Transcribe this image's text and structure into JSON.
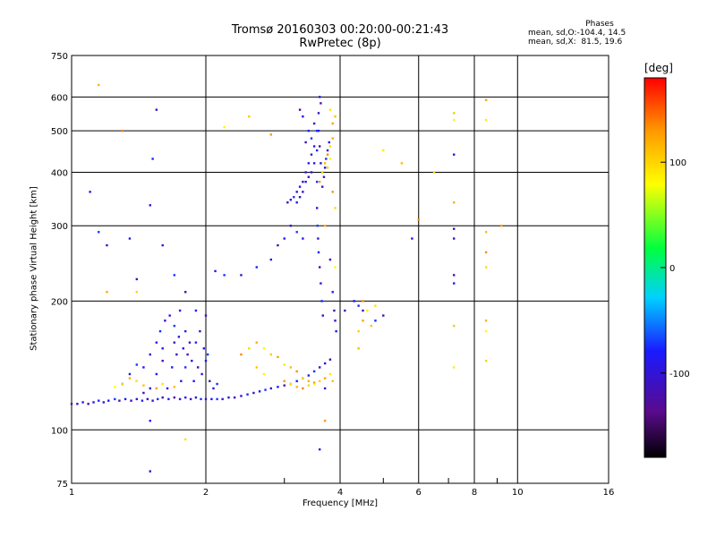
{
  "header": {
    "title_line1": "Tromsø 20160303 00:20:00-00:21:43",
    "title_line2": "RwPretec (8p)"
  },
  "phases": {
    "title": "Phases",
    "line1": "mean, sd,O:-104.4, 14.5",
    "line2": "mean, sd,X:  81.5, 19.6"
  },
  "colorbar": {
    "label": "[deg]",
    "ticks": [
      {
        "value": 100,
        "label": "100"
      },
      {
        "value": 0,
        "label": "0"
      },
      {
        "value": -100,
        "label": "-100"
      }
    ]
  },
  "chart_data": {
    "type": "scatter",
    "title": "Tromsø 20160303 00:20:00-00:21:43",
    "subtitle": "RwPretec (8p)",
    "xlabel": "Frequency [MHz]",
    "ylabel": "Stationary phase Virtual Height [km]",
    "xscale": "log",
    "yscale": "log",
    "xlim": [
      1,
      16
    ],
    "ylim": [
      75,
      750
    ],
    "xticks": [
      1,
      2,
      4,
      6,
      8,
      10,
      16
    ],
    "yticks": [
      75,
      100,
      200,
      300,
      400,
      500,
      600,
      750
    ],
    "grid": true,
    "colorbar": {
      "label": "[deg]",
      "range": [
        -180,
        180
      ],
      "colormap": "rainbow"
    },
    "series": [
      {
        "name": "O-mode",
        "color_range": [
          -130,
          -90
        ],
        "points": [
          [
            1.0,
            115
          ],
          [
            1.03,
            115
          ],
          [
            1.06,
            116
          ],
          [
            1.09,
            115
          ],
          [
            1.12,
            116
          ],
          [
            1.15,
            117
          ],
          [
            1.18,
            116
          ],
          [
            1.21,
            117
          ],
          [
            1.25,
            118
          ],
          [
            1.28,
            117
          ],
          [
            1.32,
            118
          ],
          [
            1.36,
            117
          ],
          [
            1.4,
            118
          ],
          [
            1.44,
            117
          ],
          [
            1.48,
            118
          ],
          [
            1.52,
            117
          ],
          [
            1.56,
            118
          ],
          [
            1.6,
            119
          ],
          [
            1.65,
            118
          ],
          [
            1.7,
            119
          ],
          [
            1.75,
            118
          ],
          [
            1.8,
            119
          ],
          [
            1.85,
            118
          ],
          [
            1.9,
            119
          ],
          [
            1.95,
            118
          ],
          [
            2.0,
            118
          ],
          [
            2.06,
            118
          ],
          [
            2.12,
            118
          ],
          [
            2.18,
            118
          ],
          [
            2.25,
            119
          ],
          [
            2.32,
            119
          ],
          [
            2.4,
            120
          ],
          [
            2.48,
            121
          ],
          [
            2.56,
            122
          ],
          [
            2.64,
            123
          ],
          [
            2.72,
            124
          ],
          [
            2.8,
            125
          ],
          [
            2.9,
            126
          ],
          [
            3.0,
            127
          ],
          [
            3.1,
            128
          ],
          [
            3.2,
            130
          ],
          [
            3.3,
            132
          ],
          [
            3.4,
            134
          ],
          [
            3.5,
            137
          ],
          [
            3.6,
            140
          ],
          [
            3.7,
            143
          ],
          [
            3.8,
            146
          ],
          [
            1.4,
            130
          ],
          [
            1.45,
            140
          ],
          [
            1.5,
            150
          ],
          [
            1.55,
            160
          ],
          [
            1.58,
            170
          ],
          [
            1.62,
            180
          ],
          [
            1.66,
            185
          ],
          [
            1.7,
            175
          ],
          [
            1.74,
            165
          ],
          [
            1.78,
            155
          ],
          [
            1.82,
            150
          ],
          [
            1.86,
            145
          ],
          [
            1.9,
            160
          ],
          [
            1.94,
            170
          ],
          [
            1.98,
            155
          ],
          [
            2.02,
            150
          ],
          [
            1.5,
            125
          ],
          [
            1.55,
            135
          ],
          [
            1.6,
            145
          ],
          [
            1.64,
            125
          ],
          [
            1.68,
            140
          ],
          [
            1.72,
            150
          ],
          [
            1.76,
            130
          ],
          [
            1.8,
            140
          ],
          [
            1.84,
            160
          ],
          [
            1.88,
            130
          ],
          [
            1.92,
            140
          ],
          [
            1.96,
            135
          ],
          [
            2.0,
            145
          ],
          [
            2.04,
            130
          ],
          [
            2.08,
            125
          ],
          [
            2.12,
            128
          ],
          [
            1.3,
            128
          ],
          [
            1.35,
            135
          ],
          [
            1.4,
            142
          ],
          [
            1.45,
            122
          ],
          [
            1.6,
            155
          ],
          [
            1.7,
            160
          ],
          [
            1.75,
            190
          ],
          [
            1.8,
            170
          ],
          [
            3.05,
            340
          ],
          [
            3.1,
            345
          ],
          [
            3.15,
            350
          ],
          [
            3.2,
            360
          ],
          [
            3.25,
            370
          ],
          [
            3.3,
            380
          ],
          [
            3.35,
            400
          ],
          [
            3.4,
            420
          ],
          [
            3.45,
            440
          ],
          [
            3.5,
            460
          ],
          [
            3.55,
            500
          ],
          [
            3.58,
            550
          ],
          [
            3.6,
            600
          ],
          [
            3.62,
            580
          ],
          [
            3.3,
            360
          ],
          [
            3.35,
            380
          ],
          [
            3.4,
            390
          ],
          [
            3.5,
            420
          ],
          [
            3.55,
            450
          ],
          [
            3.25,
            350
          ],
          [
            3.2,
            340
          ],
          [
            3.45,
            480
          ],
          [
            3.5,
            520
          ],
          [
            3.58,
            500
          ],
          [
            3.6,
            460
          ],
          [
            3.62,
            420
          ],
          [
            3.65,
            400
          ],
          [
            3.68,
            390
          ],
          [
            3.7,
            410
          ],
          [
            3.72,
            430
          ],
          [
            3.75,
            450
          ],
          [
            3.78,
            470
          ],
          [
            3.25,
            560
          ],
          [
            3.3,
            540
          ],
          [
            3.4,
            500
          ],
          [
            3.35,
            470
          ],
          [
            3.45,
            400
          ],
          [
            3.55,
            380
          ],
          [
            3.65,
            370
          ],
          [
            3.55,
            330
          ],
          [
            3.56,
            300
          ],
          [
            3.57,
            280
          ],
          [
            3.58,
            260
          ],
          [
            3.6,
            240
          ],
          [
            3.62,
            220
          ],
          [
            3.64,
            200
          ],
          [
            3.66,
            185
          ],
          [
            3.3,
            280
          ],
          [
            3.2,
            290
          ],
          [
            3.1,
            300
          ],
          [
            3.0,
            280
          ],
          [
            2.9,
            270
          ],
          [
            2.8,
            250
          ],
          [
            2.6,
            240
          ],
          [
            2.4,
            230
          ],
          [
            2.1,
            235
          ],
          [
            2.2,
            230
          ],
          [
            3.8,
            250
          ],
          [
            3.85,
            210
          ],
          [
            3.88,
            190
          ],
          [
            3.9,
            180
          ],
          [
            3.92,
            170
          ],
          [
            4.1,
            190
          ],
          [
            4.3,
            200
          ],
          [
            4.4,
            195
          ],
          [
            4.5,
            190
          ],
          [
            1.1,
            360
          ],
          [
            1.15,
            290
          ],
          [
            1.2,
            270
          ],
          [
            1.35,
            280
          ],
          [
            1.4,
            225
          ],
          [
            1.5,
            335
          ],
          [
            1.52,
            430
          ],
          [
            1.55,
            560
          ],
          [
            1.6,
            270
          ],
          [
            1.7,
            230
          ],
          [
            1.8,
            210
          ],
          [
            1.9,
            190
          ],
          [
            2.0,
            185
          ],
          [
            3.7,
            125
          ],
          [
            3.6,
            90
          ],
          [
            1.5,
            80
          ],
          [
            1.5,
            105
          ],
          [
            4.8,
            180
          ],
          [
            5.0,
            185
          ],
          [
            5.8,
            280
          ],
          [
            7.2,
            295
          ],
          [
            7.2,
            280
          ],
          [
            7.2,
            220
          ],
          [
            7.2,
            230
          ],
          [
            7.2,
            440
          ]
        ]
      },
      {
        "name": "X-mode",
        "color_range": [
          60,
          130
        ],
        "points": [
          [
            1.25,
            126
          ],
          [
            1.3,
            128
          ],
          [
            1.35,
            132
          ],
          [
            1.4,
            130
          ],
          [
            1.45,
            127
          ],
          [
            1.55,
            125
          ],
          [
            1.6,
            128
          ],
          [
            1.7,
            126
          ],
          [
            2.4,
            150
          ],
          [
            2.5,
            155
          ],
          [
            2.6,
            160
          ],
          [
            2.7,
            155
          ],
          [
            2.8,
            150
          ],
          [
            2.9,
            148
          ],
          [
            3.0,
            142
          ],
          [
            3.1,
            140
          ],
          [
            3.2,
            137
          ],
          [
            3.3,
            132
          ],
          [
            3.4,
            130
          ],
          [
            3.5,
            128
          ],
          [
            3.6,
            130
          ],
          [
            3.7,
            132
          ],
          [
            3.8,
            135
          ],
          [
            3.85,
            130
          ],
          [
            3.0,
            130
          ],
          [
            3.1,
            128
          ],
          [
            3.2,
            126
          ],
          [
            3.3,
            125
          ],
          [
            3.4,
            127
          ],
          [
            3.5,
            129
          ],
          [
            2.7,
            135
          ],
          [
            2.6,
            140
          ],
          [
            3.6,
            380
          ],
          [
            3.65,
            400
          ],
          [
            3.7,
            420
          ],
          [
            3.75,
            440
          ],
          [
            3.8,
            460
          ],
          [
            3.85,
            480
          ],
          [
            3.8,
            430
          ],
          [
            3.75,
            410
          ],
          [
            3.85,
            520
          ],
          [
            3.8,
            560
          ],
          [
            3.9,
            540
          ],
          [
            3.85,
            360
          ],
          [
            3.9,
            330
          ],
          [
            3.7,
            300
          ],
          [
            3.9,
            240
          ],
          [
            4.4,
            170
          ],
          [
            4.5,
            180
          ],
          [
            4.6,
            190
          ],
          [
            4.7,
            175
          ],
          [
            4.5,
            200
          ],
          [
            4.8,
            195
          ],
          [
            1.15,
            640
          ],
          [
            1.3,
            500
          ],
          [
            1.4,
            210
          ],
          [
            1.2,
            210
          ],
          [
            2.2,
            510
          ],
          [
            2.5,
            540
          ],
          [
            2.8,
            490
          ],
          [
            5.0,
            450
          ],
          [
            5.5,
            420
          ],
          [
            6.0,
            310
          ],
          [
            6.5,
            400
          ],
          [
            7.2,
            340
          ],
          [
            7.2,
            530
          ],
          [
            7.2,
            550
          ],
          [
            8.5,
            590
          ],
          [
            8.5,
            530
          ],
          [
            8.5,
            290
          ],
          [
            8.5,
            260
          ],
          [
            8.5,
            240
          ],
          [
            8.5,
            180
          ],
          [
            8.5,
            170
          ],
          [
            8.5,
            145
          ],
          [
            9.2,
            300
          ],
          [
            7.2,
            140
          ],
          [
            7.2,
            175
          ],
          [
            3.7,
            105
          ],
          [
            1.8,
            95
          ],
          [
            4.4,
            155
          ]
        ]
      }
    ]
  }
}
